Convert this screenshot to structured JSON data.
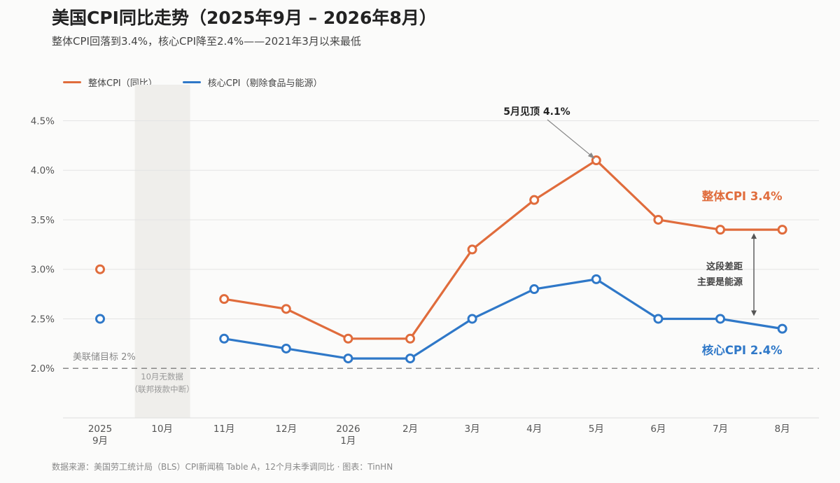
{
  "title": "美国CPI同比走势（2025年9月 – 2026年8月）",
  "subtitle": "整体CPI回落到3.4%，核心CPI降至2.4%——2021年3月以来最低",
  "source": "数据来源：美国劳工统计局（BLS）CPI新闻稿 Table A，12个月未季调同比 · 图表：TinHN",
  "colors": {
    "headline": "#e06c3c",
    "core": "#2f78c8",
    "gap_band": "#efeeeb",
    "grid": "#e4e4e4",
    "target_line": "#888888"
  },
  "chart_data": {
    "type": "line",
    "title": "美国CPI同比走势（2025年9月 – 2026年8月）",
    "categories": [
      "2025\n9月",
      "10月",
      "11月",
      "12月",
      "2026\n1月",
      "2月",
      "3月",
      "4月",
      "5月",
      "6月",
      "7月",
      "8月"
    ],
    "ylim": [
      1.5,
      4.8
    ],
    "yticks": [
      2.0,
      2.5,
      3.0,
      3.5,
      4.0,
      4.5
    ],
    "ytick_labels": [
      "2.0%",
      "2.5%",
      "3.0%",
      "3.5%",
      "4.0%",
      "4.5%"
    ],
    "grid": true,
    "legend_position": "top-left",
    "series": [
      {
        "name": "整体CPI（同比）",
        "color": "#e06c3c",
        "values": [
          3.0,
          null,
          2.7,
          2.6,
          2.3,
          2.3,
          3.2,
          3.7,
          4.1,
          3.5,
          3.4,
          3.4
        ],
        "end_label": "整体CPI 3.4%"
      },
      {
        "name": "核心CPI（剔除食品与能源）",
        "color": "#2f78c8",
        "values": [
          2.5,
          null,
          2.3,
          2.2,
          2.1,
          2.1,
          2.5,
          2.8,
          2.9,
          2.5,
          2.5,
          2.4
        ],
        "end_label": "核心CPI 2.4%"
      }
    ],
    "reference_line": {
      "value": 2.0,
      "label": "美联储目标 2%"
    },
    "missing_band": {
      "category_index": 1,
      "label_line1": "10月无数据",
      "label_line2": "（联邦拨款中断）"
    },
    "annotations": {
      "peak": {
        "text": "5月见顶 4.1%",
        "category_index": 8,
        "value": 4.1
      },
      "gap": {
        "line1": "这段差距",
        "line2": "主要是能源",
        "from": 3.4,
        "to": 2.5
      }
    }
  }
}
